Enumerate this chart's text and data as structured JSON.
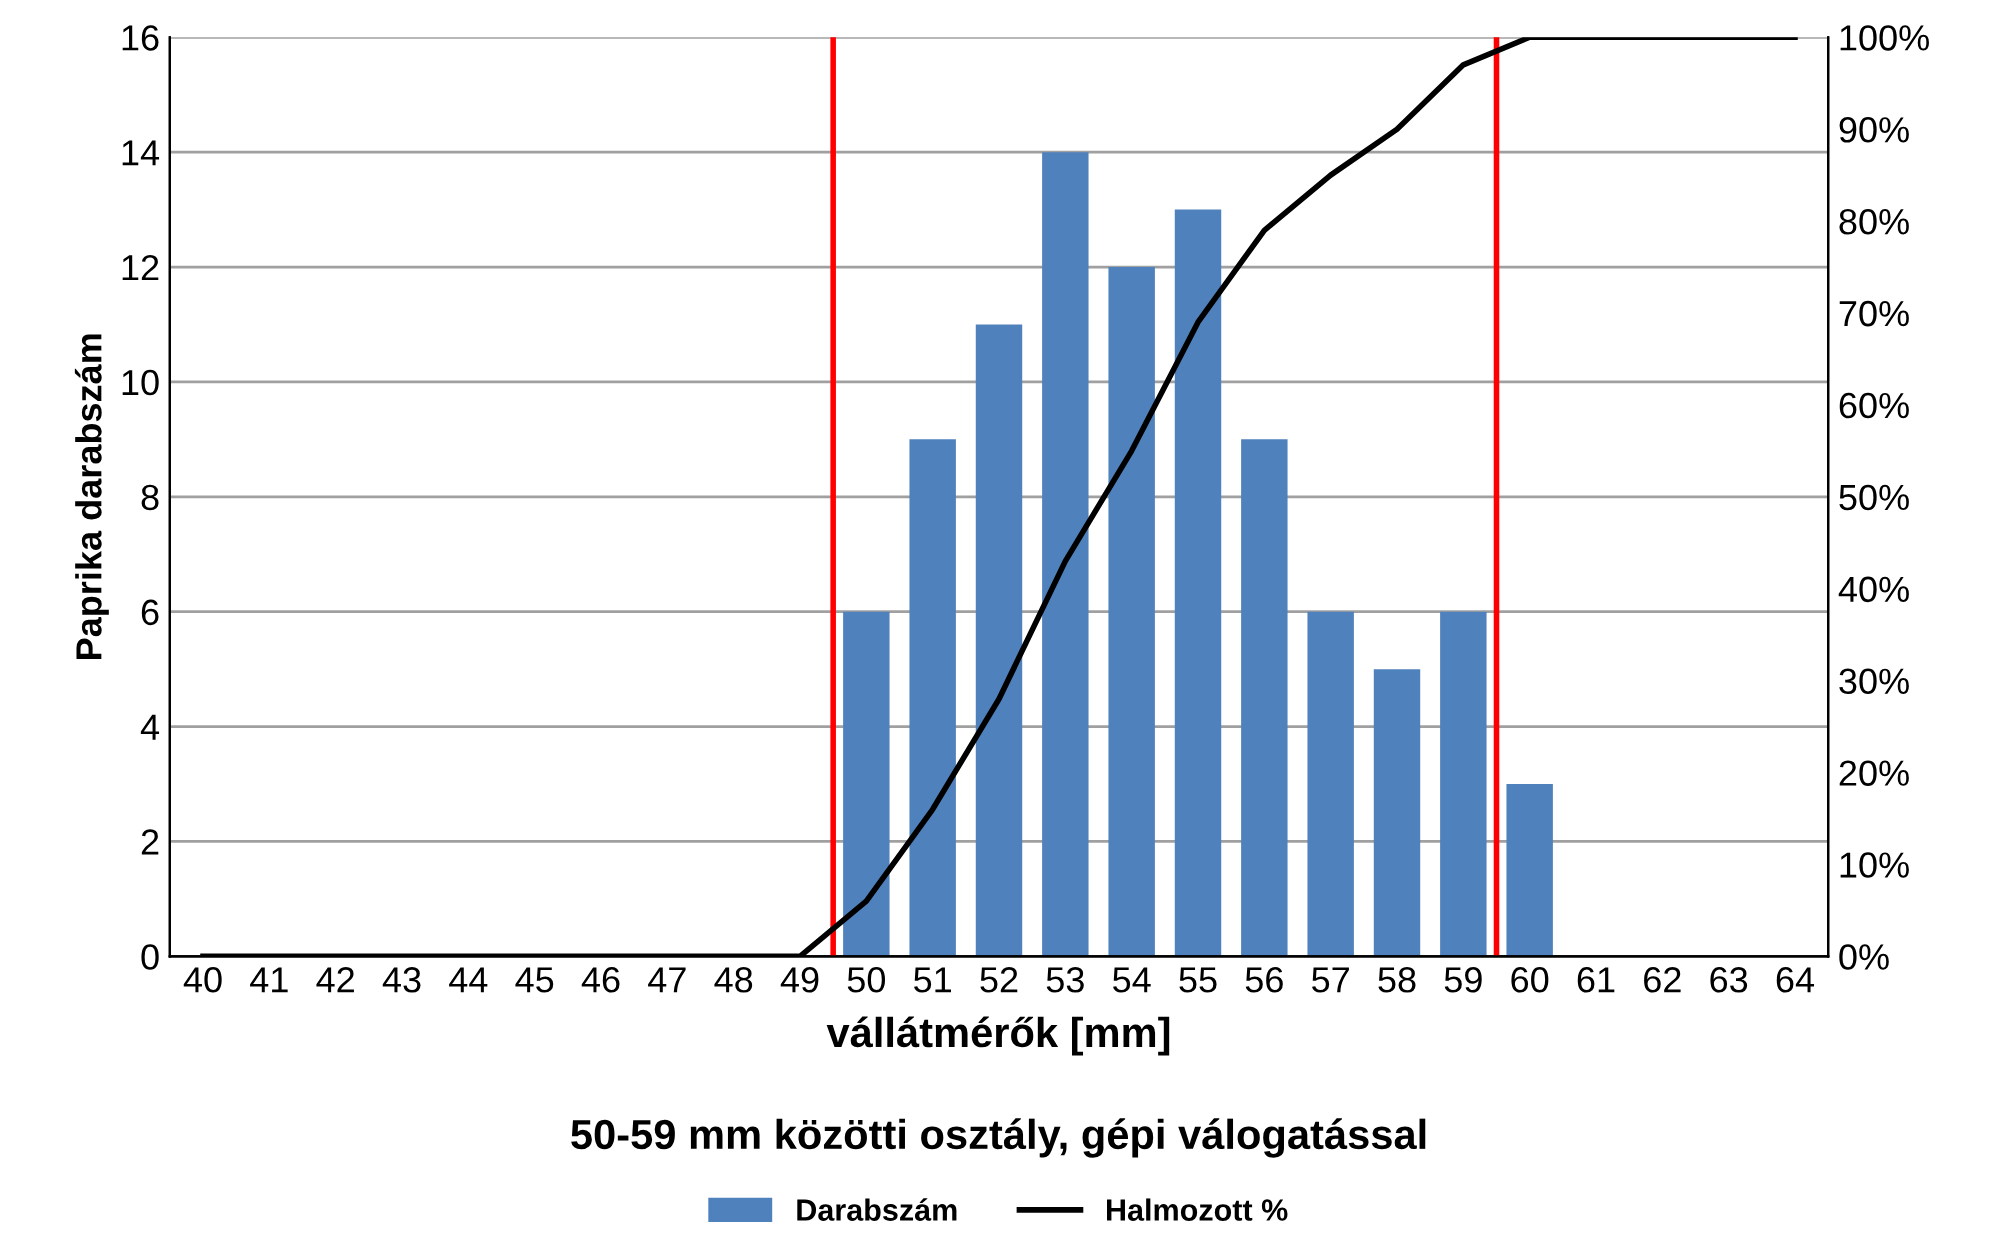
{
  "chart_data": {
    "type": "bar",
    "xlabel": "vállátmérők [mm]",
    "subtitle": "50-59 mm közötti osztály, gépi válogatással",
    "ylabel": "Paprika darabszám",
    "x": [
      40,
      41,
      42,
      43,
      44,
      45,
      46,
      47,
      48,
      49,
      50,
      51,
      52,
      53,
      54,
      55,
      56,
      57,
      58,
      59,
      60,
      61,
      62,
      63,
      64
    ],
    "xlim": [
      39.5,
      64.5
    ],
    "xticks": [
      40,
      41,
      42,
      43,
      44,
      45,
      46,
      47,
      48,
      49,
      50,
      51,
      52,
      53,
      54,
      55,
      56,
      57,
      58,
      59,
      60,
      61,
      62,
      63,
      64
    ],
    "ylim": [
      0,
      16
    ],
    "yticks": [
      0,
      2,
      4,
      6,
      8,
      10,
      12,
      14,
      16
    ],
    "y2lim": [
      0,
      100
    ],
    "y2ticks": [
      {
        "value": 0,
        "label": "0%"
      },
      {
        "value": 10,
        "label": "10%"
      },
      {
        "value": 20,
        "label": "20%"
      },
      {
        "value": 30,
        "label": "30%"
      },
      {
        "value": 40,
        "label": "40%"
      },
      {
        "value": 50,
        "label": "50%"
      },
      {
        "value": 60,
        "label": "60%"
      },
      {
        "value": 70,
        "label": "70%"
      },
      {
        "value": 80,
        "label": "80%"
      },
      {
        "value": 90,
        "label": "90%"
      },
      {
        "value": 100,
        "label": "100%"
      }
    ],
    "series": [
      {
        "name": "Darabszám",
        "color": "#4f81bd",
        "values": [
          0,
          0,
          0,
          0,
          0,
          0,
          0,
          0,
          0,
          0,
          6,
          9,
          11,
          14,
          12,
          13,
          9,
          6,
          5,
          6,
          3,
          0,
          0,
          0,
          0
        ]
      },
      {
        "name": "Halmozott %",
        "type": "line",
        "axis": "y2",
        "color": "#000000",
        "values": [
          0,
          0,
          0,
          0,
          0,
          0,
          0,
          0,
          0,
          0,
          6,
          16,
          28,
          43,
          55,
          69,
          79,
          85,
          90,
          97,
          100,
          100,
          100,
          100,
          100
        ]
      }
    ],
    "ref_lines": [
      {
        "axis": "x",
        "value": 49.5,
        "color": "#ff0000"
      },
      {
        "axis": "x",
        "value": 59.5,
        "color": "#ff0000"
      }
    ],
    "grid": "y",
    "legend": "bottom",
    "marker": "none",
    "line_style": "solid"
  }
}
